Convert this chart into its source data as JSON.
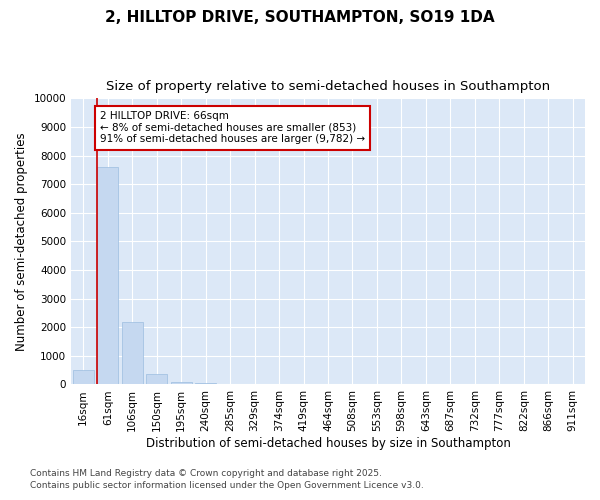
{
  "title_line1": "2, HILLTOP DRIVE, SOUTHAMPTON, SO19 1DA",
  "title_line2": "Size of property relative to semi-detached houses in Southampton",
  "xlabel": "Distribution of semi-detached houses by size in Southampton",
  "ylabel": "Number of semi-detached properties",
  "categories": [
    "16sqm",
    "61sqm",
    "106sqm",
    "150sqm",
    "195sqm",
    "240sqm",
    "285sqm",
    "329sqm",
    "374sqm",
    "419sqm",
    "464sqm",
    "508sqm",
    "553sqm",
    "598sqm",
    "643sqm",
    "687sqm",
    "732sqm",
    "777sqm",
    "822sqm",
    "866sqm",
    "911sqm"
  ],
  "values": [
    500,
    7600,
    2200,
    380,
    100,
    50,
    10,
    0,
    0,
    0,
    0,
    0,
    0,
    0,
    0,
    0,
    0,
    0,
    0,
    0,
    0
  ],
  "bar_color": "#c5d8f0",
  "bar_edge_color": "#9bbddf",
  "plot_bg_color": "#dce8f7",
  "fig_bg_color": "#ffffff",
  "grid_color": "#ffffff",
  "annotation_box_color": "#cc0000",
  "property_line_color": "#cc0000",
  "property_bar_index": 1,
  "annotation_title": "2 HILLTOP DRIVE: 66sqm",
  "annotation_line1": "← 8% of semi-detached houses are smaller (853)",
  "annotation_line2": "91% of semi-detached houses are larger (9,782) →",
  "ylim": [
    0,
    10000
  ],
  "yticks": [
    0,
    1000,
    2000,
    3000,
    4000,
    5000,
    6000,
    7000,
    8000,
    9000,
    10000
  ],
  "footnote1": "Contains HM Land Registry data © Crown copyright and database right 2025.",
  "footnote2": "Contains public sector information licensed under the Open Government Licence v3.0.",
  "title_fontsize": 11,
  "subtitle_fontsize": 9.5,
  "axis_label_fontsize": 8.5,
  "tick_fontsize": 7.5,
  "annotation_fontsize": 7.5,
  "footnote_fontsize": 6.5
}
